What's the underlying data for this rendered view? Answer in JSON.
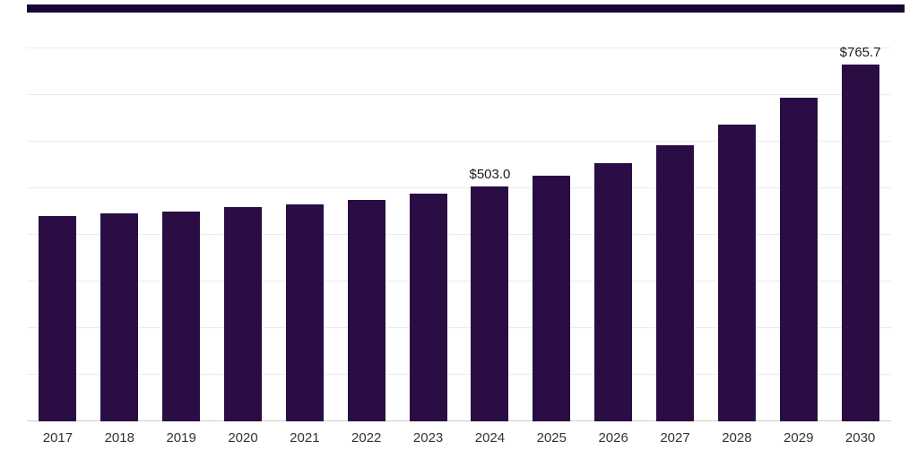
{
  "chart_data": {
    "type": "bar",
    "title": "",
    "xlabel": "",
    "ylabel": "",
    "categories": [
      "2017",
      "2018",
      "2019",
      "2020",
      "2021",
      "2022",
      "2023",
      "2024",
      "2025",
      "2026",
      "2027",
      "2028",
      "2029",
      "2030"
    ],
    "values": [
      439.7,
      445.4,
      449.2,
      458.8,
      464.5,
      474.1,
      487.6,
      503.0,
      526.0,
      554.8,
      593.2,
      637.3,
      694.9,
      765.7
    ],
    "annotations": [
      {
        "category": "2024",
        "text": "$503.0"
      },
      {
        "category": "2030",
        "text": "$765.7"
      }
    ],
    "ylim": [
      0,
      800
    ],
    "gridline_step": 100,
    "grid": true,
    "legend": "none",
    "colors": {
      "bar": "#2a0d45",
      "accent_bar": "#190733",
      "gridline": "#ececec",
      "baseline": "#cccccc",
      "data_label": "#1a1a1a",
      "axis_label": "#333333"
    }
  }
}
